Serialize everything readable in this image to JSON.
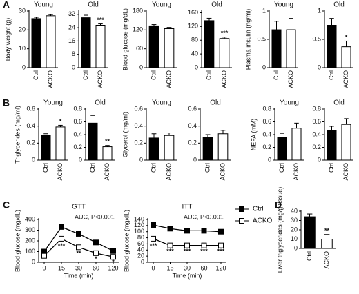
{
  "chart_data": [
    {
      "type": "bar",
      "panel": "A",
      "title": "Young",
      "ylabel": "Body weight (g)",
      "categories": [
        "Ctrl",
        "ACKO"
      ],
      "colors": [
        "#000000",
        "#ffffff"
      ],
      "values": [
        26,
        27.5
      ],
      "errors": [
        0.7,
        0.6
      ],
      "sig": [
        null,
        null
      ],
      "ylim": [
        0,
        30
      ],
      "yticks": [
        0,
        10,
        20,
        30
      ]
    },
    {
      "type": "bar",
      "title": "Old",
      "categories": [
        "Ctrl",
        "ACKO"
      ],
      "colors": [
        "#000000",
        "#ffffff"
      ],
      "values": [
        30,
        25.5
      ],
      "errors": [
        1.5,
        0.8
      ],
      "sig": [
        null,
        "***"
      ],
      "ylim": [
        0,
        34
      ],
      "yticks": [
        0,
        8,
        16,
        24,
        32
      ]
    },
    {
      "type": "bar",
      "title": "Young",
      "ylabel": "Blood glucose (mg/dL)",
      "categories": [
        "Ctrl",
        "ACKO"
      ],
      "colors": [
        "#000000",
        "#ffffff"
      ],
      "values": [
        133,
        124
      ],
      "errors": [
        4,
        4
      ],
      "sig": [
        null,
        null
      ],
      "ylim": [
        0,
        180
      ],
      "yticks": [
        0,
        60,
        120,
        180
      ]
    },
    {
      "type": "bar",
      "title": "Old",
      "categories": [
        "Ctrl",
        "ACKO"
      ],
      "colors": [
        "#000000",
        "#ffffff"
      ],
      "values": [
        137,
        85
      ],
      "errors": [
        7,
        4
      ],
      "sig": [
        null,
        "***"
      ],
      "ylim": [
        0,
        165
      ],
      "yticks": [
        0,
        40,
        80,
        120,
        160
      ]
    },
    {
      "type": "bar",
      "title": "Young",
      "ylabel": "Plasma insulin (ng/ml)",
      "categories": [
        "Ctrl",
        "ACKO"
      ],
      "colors": [
        "#000000",
        "#ffffff"
      ],
      "values": [
        0.67,
        0.67
      ],
      "errors": [
        0.15,
        0.2
      ],
      "sig": [
        null,
        null
      ],
      "ylim": [
        0,
        1
      ],
      "yticks": [
        0,
        0.5,
        1
      ]
    },
    {
      "type": "bar",
      "title": "Old",
      "categories": [
        "Ctrl",
        "ACKO"
      ],
      "colors": [
        "#000000",
        "#ffffff"
      ],
      "values": [
        0.75,
        0.37
      ],
      "errors": [
        0.12,
        0.1
      ],
      "sig": [
        null,
        "*"
      ],
      "ylim": [
        0,
        1
      ],
      "yticks": [
        0,
        0.5,
        1
      ]
    },
    {
      "type": "bar",
      "panel": "B",
      "title": "Young",
      "ylabel": "Triglycerides (mg/ml)",
      "categories": [
        "Ctrl",
        "ACKO"
      ],
      "colors": [
        "#000000",
        "#ffffff"
      ],
      "values": [
        0.29,
        0.39
      ],
      "errors": [
        0.02,
        0.02
      ],
      "sig": [
        null,
        "*"
      ],
      "ylim": [
        0,
        0.6
      ],
      "yticks": [
        0,
        0.2,
        0.4,
        0.6
      ]
    },
    {
      "type": "bar",
      "title": "Old",
      "categories": [
        "Ctrl",
        "ACKO"
      ],
      "colors": [
        "#000000",
        "#ffffff"
      ],
      "values": [
        0.58,
        0.21
      ],
      "errors": [
        0.12,
        0.02
      ],
      "sig": [
        null,
        "**"
      ],
      "ylim": [
        0,
        0.8
      ],
      "yticks": [
        0,
        0.2,
        0.4,
        0.6,
        0.8
      ]
    },
    {
      "type": "bar",
      "title": "Young",
      "ylabel": "Glycerol (mg/ml)",
      "categories": [
        "Ctrl",
        "ACKO"
      ],
      "colors": [
        "#000000",
        "#ffffff"
      ],
      "values": [
        0.26,
        0.29
      ],
      "errors": [
        0.05,
        0.03
      ],
      "sig": [
        null,
        null
      ],
      "ylim": [
        0,
        0.6
      ],
      "yticks": [
        0,
        0.2,
        0.4,
        0.6
      ]
    },
    {
      "type": "bar",
      "title": "Old",
      "categories": [
        "Ctrl",
        "ACKO"
      ],
      "colors": [
        "#000000",
        "#ffffff"
      ],
      "values": [
        0.27,
        0.31
      ],
      "errors": [
        0.03,
        0.04
      ],
      "sig": [
        null,
        null
      ],
      "ylim": [
        0,
        0.6
      ],
      "yticks": [
        0,
        0.2,
        0.4,
        0.6
      ]
    },
    {
      "type": "bar",
      "title": "Young",
      "ylabel": "NEFA (mM)",
      "categories": [
        "Ctrl",
        "ACKO"
      ],
      "colors": [
        "#000000",
        "#ffffff"
      ],
      "values": [
        0.36,
        0.5
      ],
      "errors": [
        0.06,
        0.08
      ],
      "sig": [
        null,
        null
      ],
      "ylim": [
        0,
        0.8
      ],
      "yticks": [
        0,
        0.2,
        0.4,
        0.6,
        0.8
      ]
    },
    {
      "type": "bar",
      "title": "Old",
      "categories": [
        "Ctrl",
        "ACKO"
      ],
      "colors": [
        "#000000",
        "#ffffff"
      ],
      "values": [
        0.47,
        0.56
      ],
      "errors": [
        0.06,
        0.09
      ],
      "sig": [
        null,
        null
      ],
      "ylim": [
        0,
        0.8
      ],
      "yticks": [
        0,
        0.2,
        0.4,
        0.6,
        0.8
      ]
    },
    {
      "type": "line",
      "panel": "C",
      "title": "GTT",
      "annotation": "AUC, P<0.001",
      "ylabel": "Blood glucose (mg/dL)",
      "xlabel": "Time (min)",
      "categories": [
        "0",
        "15",
        "30",
        "60",
        "120"
      ],
      "ylim": [
        0,
        400
      ],
      "yticks": [
        0,
        100,
        200,
        300,
        400
      ],
      "series": [
        {
          "name": "Ctrl",
          "color": "#000000",
          "values": [
            100,
            330,
            265,
            185,
            105
          ],
          "errors": [
            8,
            15,
            12,
            10,
            6
          ],
          "sig": [
            null,
            null,
            null,
            null,
            null
          ]
        },
        {
          "name": "ACKO",
          "color": "#ffffff",
          "values": [
            60,
            220,
            140,
            85,
            50
          ],
          "errors": [
            8,
            25,
            15,
            12,
            6
          ],
          "sig": [
            null,
            "***",
            "**",
            "*",
            "*"
          ]
        }
      ]
    },
    {
      "type": "line",
      "title": "ITT",
      "annotation": "AUC, P<0.001",
      "ylabel": "Blood glucose (mg/dL)",
      "xlabel": "Time (min)",
      "legend": true,
      "categories": [
        "0",
        "15",
        "30",
        "60",
        "120"
      ],
      "ylim": [
        0,
        140
      ],
      "yticks": [
        0,
        20,
        40,
        60,
        80,
        100,
        120,
        140
      ],
      "series": [
        {
          "name": "Ctrl",
          "color": "#000000",
          "values": [
            122,
            110,
            103,
            103,
            100
          ],
          "errors": [
            6,
            5,
            5,
            5,
            5
          ],
          "sig": [
            null,
            null,
            null,
            null,
            null
          ]
        },
        {
          "name": "ACKO",
          "color": "#ffffff",
          "values": [
            77,
            55,
            55,
            55,
            55
          ],
          "errors": [
            8,
            5,
            5,
            5,
            5
          ],
          "sig": [
            "***",
            "***",
            "***",
            "***",
            "***"
          ]
        }
      ]
    },
    {
      "type": "bar",
      "panel": "D",
      "ylabel": "Liver triglycerides (mg/g tissue)",
      "categories": [
        "Ctrl",
        "ACKO"
      ],
      "colors": [
        "#000000",
        "#ffffff"
      ],
      "values": [
        34,
        10
      ],
      "errors": [
        3,
        5
      ],
      "sig": [
        null,
        "**"
      ],
      "ylim": [
        0,
        40
      ],
      "yticks": [
        0,
        10,
        20,
        30,
        40
      ]
    }
  ]
}
